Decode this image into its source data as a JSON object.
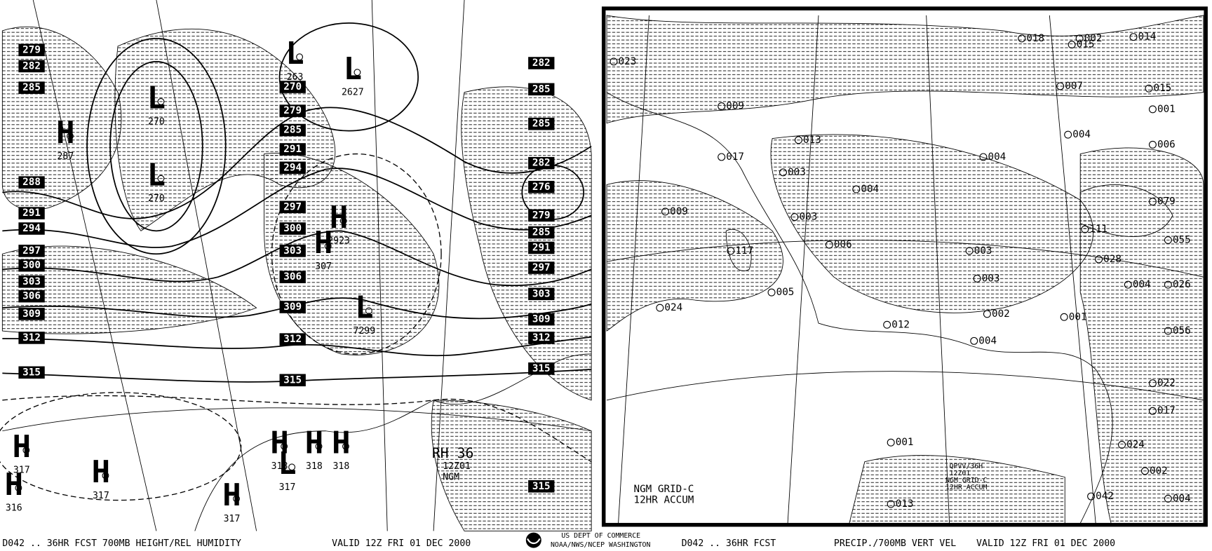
{
  "left_panel": {
    "height_labels": [
      "279",
      "282",
      "285",
      "288",
      "291",
      "294",
      "297",
      "300",
      "303",
      "306",
      "309",
      "312",
      "315",
      "270",
      "279",
      "285",
      "291",
      "294",
      "297",
      "300",
      "303",
      "306",
      "309",
      "312",
      "315",
      "282",
      "285",
      "285",
      "282",
      "276",
      "279",
      "285",
      "291",
      "297",
      "303",
      "309",
      "312",
      "315",
      "315"
    ],
    "centers": [
      {
        "symbol": "L",
        "value": "270"
      },
      {
        "symbol": "L",
        "value": "270"
      },
      {
        "symbol": "H",
        "value": "287"
      },
      {
        "symbol": "L",
        "value": "263"
      },
      {
        "symbol": "L",
        "value": "2627"
      },
      {
        "symbol": "H",
        "value": "2923"
      },
      {
        "symbol": "H",
        "value": "307"
      },
      {
        "symbol": "L",
        "value": "7299"
      },
      {
        "symbol": "H",
        "value": "317"
      },
      {
        "symbol": "H",
        "value": "317"
      },
      {
        "symbol": "H",
        "value": "317"
      },
      {
        "symbol": "H",
        "value": "318"
      },
      {
        "symbol": "H",
        "value": "318"
      },
      {
        "symbol": "H",
        "value": "318"
      },
      {
        "symbol": "L",
        "value": "317"
      },
      {
        "symbol": "H",
        "value": "316"
      }
    ],
    "annotations": [
      "RH 36",
      "12Z01",
      "NGM"
    ]
  },
  "right_panel": {
    "precip_labels": [
      "018",
      "002",
      "014",
      "023",
      "015",
      "007",
      "015",
      "009",
      "001",
      "004",
      "006",
      "017",
      "003",
      "004",
      "013",
      "009",
      "004",
      "079",
      "117",
      "003",
      "006",
      "003",
      "111",
      "028",
      "055",
      "005",
      "003",
      "004",
      "026",
      "024",
      "002",
      "001",
      "012",
      "004",
      "056",
      "022",
      "017",
      "001",
      "024",
      "002",
      "013",
      "042",
      "004"
    ],
    "annotations": [
      "NGM GRID-C",
      "12HR ACCUM",
      "QPVV/36H",
      "12Z01",
      "NGM GRID-C",
      "12HR ACCUM"
    ]
  },
  "footer": {
    "left_title": "D042 .. 36HR FCST 700MB HEIGHT/REL HUMIDITY",
    "left_valid": "VALID 12Z FRI 01 DEC 2000",
    "agency_line1": "US DEPT OF COMMERCE",
    "agency_line2": "NOAA/NWS/NCEP WASHINGTON",
    "right_title": "D042 .. 36HR FCST",
    "right_subtitle": "PRECIP./700MB VERT VEL",
    "right_valid": "VALID 12Z FRI 01 DEC 2000"
  }
}
